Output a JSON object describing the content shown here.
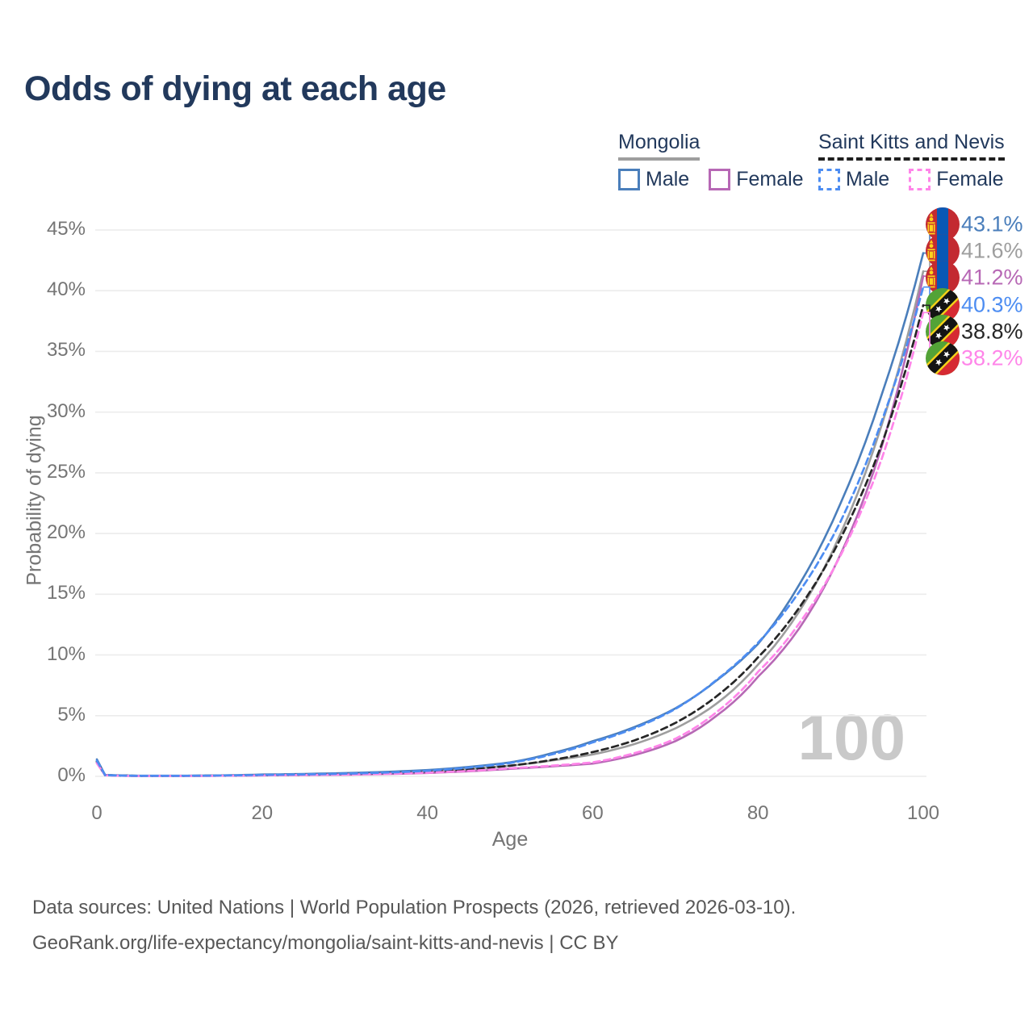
{
  "title": "Odds of dying at each age",
  "legend": {
    "groups": [
      {
        "name": "Mongolia",
        "underline": {
          "style": "solid",
          "color": "#9e9e9e"
        },
        "items": [
          {
            "label": "Male",
            "color": "#4a7ebb",
            "dashed": false
          },
          {
            "label": "Female",
            "color": "#b768b5",
            "dashed": false
          }
        ]
      },
      {
        "name": "Saint Kitts and Nevis",
        "underline": {
          "style": "dashed",
          "color": "#1f1f1f"
        },
        "items": [
          {
            "label": "Male",
            "color": "#4d8df2",
            "dashed": true
          },
          {
            "label": "Female",
            "color": "#ff85e9",
            "dashed": true
          }
        ]
      }
    ]
  },
  "watermark": {
    "text": "100"
  },
  "chart_data": {
    "type": "line",
    "title": "Odds of dying at each age",
    "xlabel": "Age",
    "ylabel": "Probability of dying",
    "xlim": [
      0,
      100
    ],
    "ylim": [
      0,
      45
    ],
    "grid": "horizontal",
    "legend_position": "top-right",
    "x_ticks": [
      0,
      20,
      40,
      60,
      80,
      100
    ],
    "x_tick_labels": [
      "0",
      "20",
      "40",
      "60",
      "80",
      "100"
    ],
    "y_ticks": [
      0,
      5,
      10,
      15,
      20,
      25,
      30,
      35,
      40,
      45
    ],
    "y_tick_labels": [
      "0%",
      "5%",
      "10%",
      "15%",
      "20%",
      "25%",
      "30%",
      "35%",
      "40%",
      "45%"
    ],
    "x": [
      0,
      1,
      5,
      10,
      15,
      20,
      25,
      30,
      35,
      40,
      45,
      50,
      55,
      60,
      65,
      70,
      75,
      80,
      85,
      90,
      95,
      100
    ],
    "series": [
      {
        "name": "Mongolia Male",
        "country": "Mongolia",
        "flag": "mn",
        "style": "solid",
        "color": "#4a7ebb",
        "end_label": "43.1%",
        "end_value": 43.1,
        "values": [
          1.4,
          0.12,
          0.05,
          0.05,
          0.08,
          0.15,
          0.2,
          0.27,
          0.37,
          0.52,
          0.78,
          1.15,
          1.9,
          2.9,
          4.05,
          5.6,
          7.9,
          10.9,
          15.8,
          22.5,
          31.5,
          43.1
        ]
      },
      {
        "name": "Mongolia Both sexes",
        "country": "Mongolia",
        "flag": "mn",
        "style": "solid",
        "color": "#9e9e9e",
        "end_label": "41.6%",
        "end_value": 41.6,
        "values": [
          1.25,
          0.11,
          0.04,
          0.04,
          0.07,
          0.12,
          0.16,
          0.21,
          0.28,
          0.4,
          0.6,
          0.88,
          1.3,
          1.8,
          2.65,
          3.95,
          6.0,
          9.2,
          13.6,
          20.0,
          29.0,
          41.6
        ]
      },
      {
        "name": "Mongolia Female",
        "country": "Mongolia",
        "flag": "mn",
        "style": "solid",
        "color": "#b768b5",
        "end_label": "41.2%",
        "end_value": 41.2,
        "values": [
          1.1,
          0.09,
          0.03,
          0.03,
          0.05,
          0.08,
          0.11,
          0.14,
          0.19,
          0.28,
          0.42,
          0.62,
          0.82,
          1.05,
          1.75,
          2.9,
          5.0,
          8.2,
          12.2,
          18.3,
          27.2,
          41.2
        ]
      },
      {
        "name": "Saint Kitts and Nevis Male",
        "country": "Saint Kitts and Nevis",
        "flag": "kn",
        "style": "dashed",
        "color": "#4d8df2",
        "end_label": "40.3%",
        "end_value": 40.3,
        "values": [
          1.3,
          0.1,
          0.04,
          0.04,
          0.07,
          0.12,
          0.16,
          0.22,
          0.31,
          0.46,
          0.72,
          1.1,
          1.8,
          2.8,
          3.95,
          5.55,
          7.95,
          11.0,
          15.2,
          21.0,
          29.3,
          40.3
        ]
      },
      {
        "name": "Saint Kitts and Nevis Both sexes",
        "country": "Saint Kitts and Nevis",
        "flag": "kn",
        "style": "dashed",
        "color": "#262626",
        "end_label": "38.8%",
        "end_value": 38.8,
        "values": [
          1.2,
          0.1,
          0.04,
          0.04,
          0.06,
          0.1,
          0.14,
          0.19,
          0.26,
          0.38,
          0.58,
          0.88,
          1.35,
          2.0,
          2.95,
          4.4,
          6.6,
          9.8,
          13.9,
          19.6,
          27.4,
          38.8
        ]
      },
      {
        "name": "Saint Kitts and Nevis Female",
        "country": "Saint Kitts and Nevis",
        "flag": "kn",
        "style": "dashed",
        "color": "#ff85e9",
        "end_label": "38.2%",
        "end_value": 38.2,
        "values": [
          1.1,
          0.09,
          0.03,
          0.03,
          0.05,
          0.08,
          0.11,
          0.15,
          0.21,
          0.3,
          0.45,
          0.67,
          0.88,
          1.15,
          1.9,
          3.1,
          5.3,
          8.6,
          12.6,
          18.2,
          26.2,
          38.2
        ]
      }
    ]
  },
  "footer": {
    "line1": "Data sources: United Nations | World Population Prospects (2026, retrieved 2026-03-10).",
    "line2": "GeoRank.org/life-expectancy/mongolia/saint-kitts-and-nevis | CC BY"
  }
}
